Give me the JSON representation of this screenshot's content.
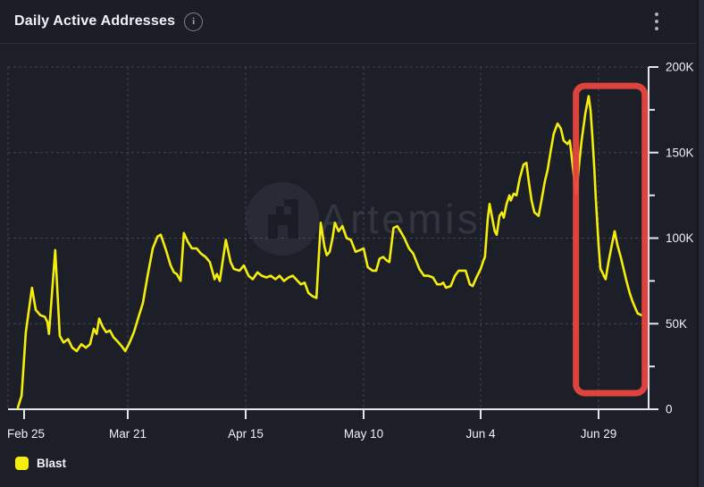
{
  "header": {
    "title": "Daily Active Addresses"
  },
  "icons": {
    "header_info": "info-circle",
    "header_menu": "kebab-vertical",
    "info_glyph": "i"
  },
  "watermark": {
    "text": "Artemis"
  },
  "legend": {
    "items": [
      {
        "label": "Blast",
        "color": "#F5EE0D"
      }
    ]
  },
  "colors": {
    "background": "#1C1E28",
    "line": "#F5EE0D",
    "annotation_red": "#E8473E",
    "axis": "#E4E6EA",
    "grid": "#41444E",
    "tick_text": "#EFF1F4",
    "watermark_text": "rgba(210,216,232,0.12)",
    "watermark_circle": "rgba(210,216,232,0.07)"
  },
  "chart_data": {
    "type": "line",
    "title": "Daily Active Addresses",
    "x_unit": "days since Feb 25",
    "grid": "dashed",
    "legend_position": "bottom-left",
    "x_ticks": [
      {
        "label": "Feb 25",
        "day": 0
      },
      {
        "label": "Mar 21",
        "day": 25
      },
      {
        "label": "Apr 15",
        "day": 50
      },
      {
        "label": "May 10",
        "day": 75
      },
      {
        "label": "Jun 4",
        "day": 100
      },
      {
        "label": "Jun 29",
        "day": 125
      }
    ],
    "y_axis": {
      "min": 0,
      "max": 200000,
      "ticks": [
        {
          "label": "0",
          "value": 0
        },
        {
          "label": "50K",
          "value": 50000
        },
        {
          "label": "100K",
          "value": 100000
        },
        {
          "label": "150K",
          "value": 150000
        },
        {
          "label": "200K",
          "value": 200000
        }
      ],
      "minor_tick_step": 25000
    },
    "series": [
      {
        "name": "Blast",
        "color": "#F5EE0D",
        "unit_multiplier": 1000,
        "points": [
          [
            -1.5,
            1
          ],
          [
            -0.6,
            8
          ],
          [
            0.4,
            45
          ],
          [
            1.9,
            71
          ],
          [
            2.8,
            58
          ],
          [
            3.9,
            55
          ],
          [
            5,
            54
          ],
          [
            5.6,
            51
          ],
          [
            6,
            44
          ],
          [
            7.5,
            93
          ],
          [
            8.6,
            43
          ],
          [
            9.5,
            39
          ],
          [
            10.6,
            41
          ],
          [
            11.6,
            36
          ],
          [
            12.7,
            34
          ],
          [
            13.8,
            38
          ],
          [
            14.9,
            36
          ],
          [
            15.9,
            38
          ],
          [
            16.8,
            47
          ],
          [
            17.5,
            44
          ],
          [
            18.1,
            53
          ],
          [
            19,
            48
          ],
          [
            19.8,
            45
          ],
          [
            20.7,
            46
          ],
          [
            21.6,
            42
          ],
          [
            22.4,
            40
          ],
          [
            23.5,
            37
          ],
          [
            24.4,
            34
          ],
          [
            25.4,
            39
          ],
          [
            26.3,
            45
          ],
          [
            27.3,
            54
          ],
          [
            28.2,
            62
          ],
          [
            29.2,
            78
          ],
          [
            30.3,
            94
          ],
          [
            31.3,
            101
          ],
          [
            32,
            102
          ],
          [
            33.1,
            93
          ],
          [
            34.1,
            84
          ],
          [
            34.8,
            80
          ],
          [
            35.4,
            79
          ],
          [
            36.2,
            75
          ],
          [
            36.9,
            103
          ],
          [
            37.7,
            98
          ],
          [
            38.6,
            94
          ],
          [
            39.6,
            94
          ],
          [
            40.5,
            91
          ],
          [
            41.5,
            89
          ],
          [
            42.4,
            86
          ],
          [
            43.4,
            76
          ],
          [
            43.9,
            79
          ],
          [
            44.5,
            75
          ],
          [
            45.8,
            99
          ],
          [
            46.8,
            86
          ],
          [
            47.5,
            82
          ],
          [
            48.7,
            81
          ],
          [
            49.6,
            84
          ],
          [
            50.6,
            78
          ],
          [
            51.5,
            76
          ],
          [
            52.5,
            80
          ],
          [
            53.4,
            78
          ],
          [
            54.4,
            77
          ],
          [
            55.3,
            78
          ],
          [
            56.3,
            76
          ],
          [
            57.2,
            78
          ],
          [
            58.1,
            75
          ],
          [
            59.1,
            77
          ],
          [
            60,
            78
          ],
          [
            61,
            75
          ],
          [
            61.7,
            73
          ],
          [
            62.5,
            74
          ],
          [
            63.3,
            68
          ],
          [
            64.2,
            66
          ],
          [
            65,
            65
          ],
          [
            65.9,
            109
          ],
          [
            66.7,
            95
          ],
          [
            67.2,
            90
          ],
          [
            67.8,
            92
          ],
          [
            68.4,
            100
          ],
          [
            68.9,
            109
          ],
          [
            69.7,
            104
          ],
          [
            70.5,
            107
          ],
          [
            71.4,
            100
          ],
          [
            72.3,
            99
          ],
          [
            73.3,
            92
          ],
          [
            74.2,
            93
          ],
          [
            75,
            94
          ],
          [
            75.9,
            83
          ],
          [
            76.9,
            81
          ],
          [
            77.7,
            81
          ],
          [
            78.4,
            88
          ],
          [
            79.2,
            89
          ],
          [
            79.9,
            87
          ],
          [
            80.5,
            86
          ],
          [
            81.4,
            106
          ],
          [
            82.2,
            107
          ],
          [
            83.1,
            103
          ],
          [
            83.7,
            100
          ],
          [
            84.7,
            94
          ],
          [
            85.6,
            91
          ],
          [
            86.9,
            82
          ],
          [
            87.9,
            78
          ],
          [
            88.8,
            78
          ],
          [
            89.8,
            77
          ],
          [
            90.7,
            73
          ],
          [
            91.5,
            73
          ],
          [
            92,
            74
          ],
          [
            92.6,
            71
          ],
          [
            93.6,
            72
          ],
          [
            94.5,
            78
          ],
          [
            95.3,
            81
          ],
          [
            96,
            81
          ],
          [
            96.8,
            81
          ],
          [
            97.7,
            73
          ],
          [
            98.3,
            72
          ],
          [
            99.1,
            77
          ],
          [
            100,
            82
          ],
          [
            100.6,
            87
          ],
          [
            100.9,
            89
          ],
          [
            101.5,
            111
          ],
          [
            101.9,
            120
          ],
          [
            102.7,
            108
          ],
          [
            103,
            104
          ],
          [
            103.4,
            102
          ],
          [
            104,
            113
          ],
          [
            104.5,
            115
          ],
          [
            104.9,
            112
          ],
          [
            105.5,
            120
          ],
          [
            106.1,
            125
          ],
          [
            106.4,
            122
          ],
          [
            107,
            126
          ],
          [
            107.6,
            125
          ],
          [
            108.3,
            135
          ],
          [
            109.1,
            143
          ],
          [
            109.7,
            144
          ],
          [
            110.2,
            133
          ],
          [
            110.8,
            122
          ],
          [
            111.4,
            115
          ],
          [
            112.3,
            113
          ],
          [
            112.9,
            122
          ],
          [
            113.6,
            133
          ],
          [
            114.2,
            140
          ],
          [
            114.8,
            150
          ],
          [
            115.5,
            161
          ],
          [
            116.3,
            167
          ],
          [
            117,
            164
          ],
          [
            117.6,
            157
          ],
          [
            118.4,
            155
          ],
          [
            118.9,
            157
          ],
          [
            119.9,
            133
          ],
          [
            120.3,
            126
          ],
          [
            120.8,
            141
          ],
          [
            121.4,
            157
          ],
          [
            122.2,
            173
          ],
          [
            122.9,
            183
          ],
          [
            123.3,
            175
          ],
          [
            123.7,
            159
          ],
          [
            124.1,
            141
          ],
          [
            124.4,
            124
          ],
          [
            124.7,
            110
          ],
          [
            125,
            96
          ],
          [
            125.4,
            82
          ],
          [
            125.8,
            80
          ],
          [
            126.1,
            78
          ],
          [
            126.5,
            76
          ],
          [
            127.1,
            86
          ],
          [
            127.8,
            96
          ],
          [
            128.4,
            104
          ],
          [
            129,
            96
          ],
          [
            129.7,
            89
          ],
          [
            130.3,
            82
          ],
          [
            130.9,
            75
          ],
          [
            131.6,
            68
          ],
          [
            132.2,
            63
          ],
          [
            132.8,
            59
          ],
          [
            133.3,
            56
          ],
          [
            134.1,
            55
          ]
        ]
      }
    ],
    "annotation": {
      "type": "rect-highlight",
      "color": "#E8473E",
      "day_start": 120.2,
      "day_end": 134.8,
      "value_low": 9400,
      "value_high": 189000
    }
  }
}
